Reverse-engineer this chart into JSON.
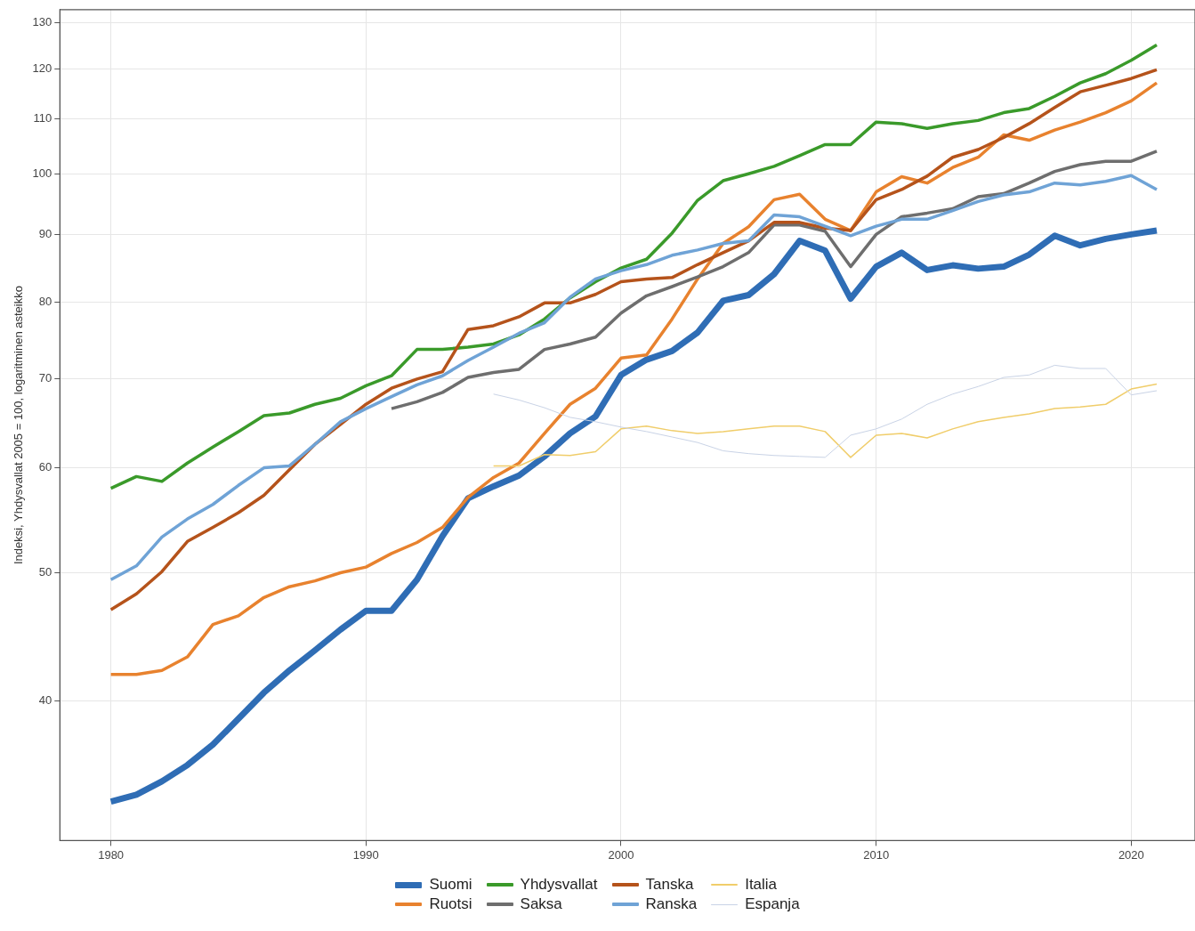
{
  "chart_data": {
    "type": "line",
    "ylabel": "Indeksi, Yhdysvallat 2005 = 100, logaritminen asteikko",
    "log": "y",
    "xlim": [
      1978,
      2022.5
    ],
    "xticks": [
      1980,
      1990,
      2000,
      2010,
      2020
    ],
    "ylim": [
      31.4,
      133
    ],
    "yticks": [
      40,
      50,
      60,
      70,
      80,
      90,
      100,
      110,
      120,
      130
    ],
    "grid": true,
    "legend": "bottom",
    "marker": "none",
    "line_style": "solid",
    "series": [
      {
        "name": "Suomi",
        "color": "#2f6db5",
        "x": [
          1980,
          1981,
          1982,
          1983,
          1984,
          1985,
          1986,
          1987,
          1988,
          1989,
          1990,
          1991,
          1992,
          1993,
          1994,
          1995,
          1996,
          1997,
          1998,
          1999,
          2000,
          2001,
          2002,
          2003,
          2004,
          2005,
          2006,
          2007,
          2008,
          2009,
          2010,
          2011,
          2012,
          2013,
          2014,
          2015,
          2016,
          2017,
          2018,
          2019,
          2020,
          2021
        ],
        "values": [
          33.6,
          34.0,
          34.8,
          35.8,
          37.1,
          38.8,
          40.6,
          42.2,
          43.7,
          45.3,
          46.8,
          46.8,
          49.4,
          53.3,
          56.9,
          58.1,
          59.2,
          61.2,
          63.7,
          65.6,
          70.5,
          72.4,
          73.5,
          75.9,
          80.2,
          81.0,
          84.0,
          89.0,
          87.5,
          80.5,
          85.1,
          87.2,
          84.6,
          85.3,
          84.8,
          85.1,
          86.9,
          89.8,
          88.3,
          89.3,
          90.0,
          90.6
        ]
      },
      {
        "name": "Ruotsi",
        "color": "#e8822e",
        "x": [
          1980,
          1981,
          1982,
          1983,
          1984,
          1985,
          1986,
          1987,
          1988,
          1989,
          1990,
          1991,
          1992,
          1993,
          1994,
          1995,
          1996,
          1997,
          1998,
          1999,
          2000,
          2001,
          2002,
          2003,
          2004,
          2005,
          2006,
          2007,
          2008,
          2009,
          2010,
          2011,
          2012,
          2013,
          2014,
          2015,
          2016,
          2017,
          2018,
          2019,
          2020,
          2021
        ],
        "values": [
          41.9,
          41.9,
          42.2,
          43.2,
          45.7,
          46.4,
          47.9,
          48.8,
          49.3,
          50.0,
          50.5,
          51.7,
          52.7,
          54.1,
          57.0,
          59.0,
          60.5,
          63.7,
          67.0,
          68.9,
          72.6,
          73.0,
          77.7,
          83.3,
          88.6,
          91.2,
          95.6,
          96.5,
          92.4,
          90.6,
          96.9,
          99.5,
          98.4,
          101.1,
          102.9,
          107.0,
          106.0,
          107.9,
          109.4,
          111.2,
          113.5,
          117.1
        ]
      },
      {
        "name": "Yhdysvallat",
        "color": "#3a9a2a",
        "x": [
          1980,
          1981,
          1982,
          1983,
          1984,
          1985,
          1986,
          1987,
          1988,
          1989,
          1990,
          1991,
          1992,
          1993,
          1994,
          1995,
          1996,
          1997,
          1998,
          1999,
          2000,
          2001,
          2002,
          2003,
          2004,
          2005,
          2006,
          2007,
          2008,
          2009,
          2010,
          2011,
          2012,
          2013,
          2014,
          2015,
          2016,
          2017,
          2018,
          2019,
          2020,
          2021
        ],
        "values": [
          57.9,
          59.1,
          58.6,
          60.5,
          62.2,
          63.9,
          65.7,
          66.0,
          67.0,
          67.7,
          69.2,
          70.4,
          73.7,
          73.7,
          74.0,
          74.4,
          75.6,
          77.7,
          80.6,
          82.9,
          84.9,
          86.2,
          90.2,
          95.5,
          98.8,
          100.0,
          101.3,
          103.2,
          105.2,
          105.2,
          109.4,
          109.1,
          108.2,
          109.1,
          109.7,
          111.2,
          112.0,
          114.4,
          117.1,
          119.0,
          121.8,
          125.1
        ]
      },
      {
        "name": "Saksa",
        "color": "#6e6e6e",
        "x": [
          1991,
          1992,
          1993,
          1994,
          1995,
          1996,
          1997,
          1998,
          1999,
          2000,
          2001,
          2002,
          2003,
          2004,
          2005,
          2006,
          2007,
          2008,
          2009,
          2010,
          2011,
          2012,
          2013,
          2014,
          2015,
          2016,
          2017,
          2018,
          2019,
          2020,
          2021
        ],
        "values": [
          66.5,
          67.3,
          68.4,
          70.2,
          70.8,
          71.2,
          73.7,
          74.4,
          75.3,
          78.5,
          80.9,
          82.2,
          83.6,
          85.1,
          87.2,
          91.5,
          91.5,
          90.5,
          85.1,
          90.0,
          92.8,
          93.4,
          94.1,
          96.1,
          96.6,
          98.4,
          100.4,
          101.6,
          102.2,
          102.2,
          104.0
        ]
      },
      {
        "name": "Tanska",
        "color": "#b5531b",
        "x": [
          1980,
          1981,
          1982,
          1983,
          1984,
          1985,
          1986,
          1987,
          1988,
          1989,
          1990,
          1991,
          1992,
          1993,
          1994,
          1995,
          1996,
          1997,
          1998,
          1999,
          2000,
          2001,
          2002,
          2003,
          2004,
          2005,
          2006,
          2007,
          2008,
          2009,
          2010,
          2011,
          2012,
          2013,
          2014,
          2015,
          2016,
          2017,
          2018,
          2019,
          2020,
          2021
        ],
        "values": [
          46.9,
          48.2,
          50.1,
          52.8,
          54.1,
          55.5,
          57.2,
          59.8,
          62.5,
          64.7,
          67.0,
          68.9,
          70.0,
          70.9,
          76.3,
          76.8,
          78.0,
          79.9,
          79.9,
          81.1,
          82.9,
          83.3,
          83.5,
          85.4,
          87.2,
          89.0,
          91.9,
          91.9,
          91.0,
          90.6,
          95.6,
          97.3,
          99.6,
          102.9,
          104.3,
          106.5,
          109.1,
          112.2,
          115.3,
          116.6,
          118.0,
          119.8
        ]
      },
      {
        "name": "Ranska",
        "color": "#6fa3d6",
        "x": [
          1980,
          1981,
          1982,
          1983,
          1984,
          1985,
          1986,
          1987,
          1988,
          1989,
          1990,
          1991,
          1992,
          1993,
          1994,
          1995,
          1996,
          1997,
          1998,
          1999,
          2000,
          2001,
          2002,
          2003,
          2004,
          2005,
          2006,
          2007,
          2008,
          2009,
          2010,
          2011,
          2012,
          2013,
          2014,
          2015,
          2016,
          2017,
          2018,
          2019,
          2020,
          2021
        ],
        "values": [
          49.4,
          50.6,
          53.2,
          54.9,
          56.3,
          58.2,
          60.0,
          60.2,
          62.5,
          65.0,
          66.5,
          67.9,
          69.3,
          70.4,
          72.3,
          74.0,
          75.8,
          77.2,
          80.7,
          83.3,
          84.5,
          85.4,
          86.8,
          87.6,
          88.6,
          89.0,
          93.1,
          92.8,
          91.3,
          89.8,
          91.3,
          92.4,
          92.4,
          93.8,
          95.3,
          96.4,
          96.9,
          98.4,
          98.1,
          98.7,
          99.7,
          97.3
        ]
      },
      {
        "name": "Italia",
        "color": "#f0cd6a",
        "x": [
          1995,
          1996,
          1997,
          1998,
          1999,
          2000,
          2001,
          2002,
          2003,
          2004,
          2005,
          2006,
          2007,
          2008,
          2009,
          2010,
          2011,
          2012,
          2013,
          2014,
          2015,
          2016,
          2017,
          2018,
          2019,
          2020,
          2021
        ],
        "values": [
          60.2,
          60.2,
          61.4,
          61.3,
          61.7,
          64.2,
          64.5,
          64.0,
          63.7,
          63.9,
          64.2,
          64.5,
          64.5,
          63.9,
          61.1,
          63.5,
          63.7,
          63.2,
          64.2,
          65.0,
          65.5,
          65.9,
          66.5,
          66.7,
          67.0,
          68.8,
          69.4
        ]
      },
      {
        "name": "Espanja",
        "color": "#c9d3e6",
        "x": [
          1995,
          1996,
          1997,
          1998,
          1999,
          2000,
          2001,
          2002,
          2003,
          2004,
          2005,
          2006,
          2007,
          2008,
          2009,
          2010,
          2011,
          2012,
          2013,
          2014,
          2015,
          2016,
          2017,
          2018,
          2019,
          2020,
          2021
        ],
        "values": [
          68.2,
          67.5,
          66.6,
          65.5,
          65.0,
          64.4,
          63.9,
          63.3,
          62.7,
          61.8,
          61.5,
          61.3,
          61.2,
          61.1,
          63.5,
          64.2,
          65.3,
          67.0,
          68.2,
          69.1,
          70.2,
          70.5,
          71.7,
          71.3,
          71.3,
          68.1,
          68.6
        ]
      }
    ]
  }
}
